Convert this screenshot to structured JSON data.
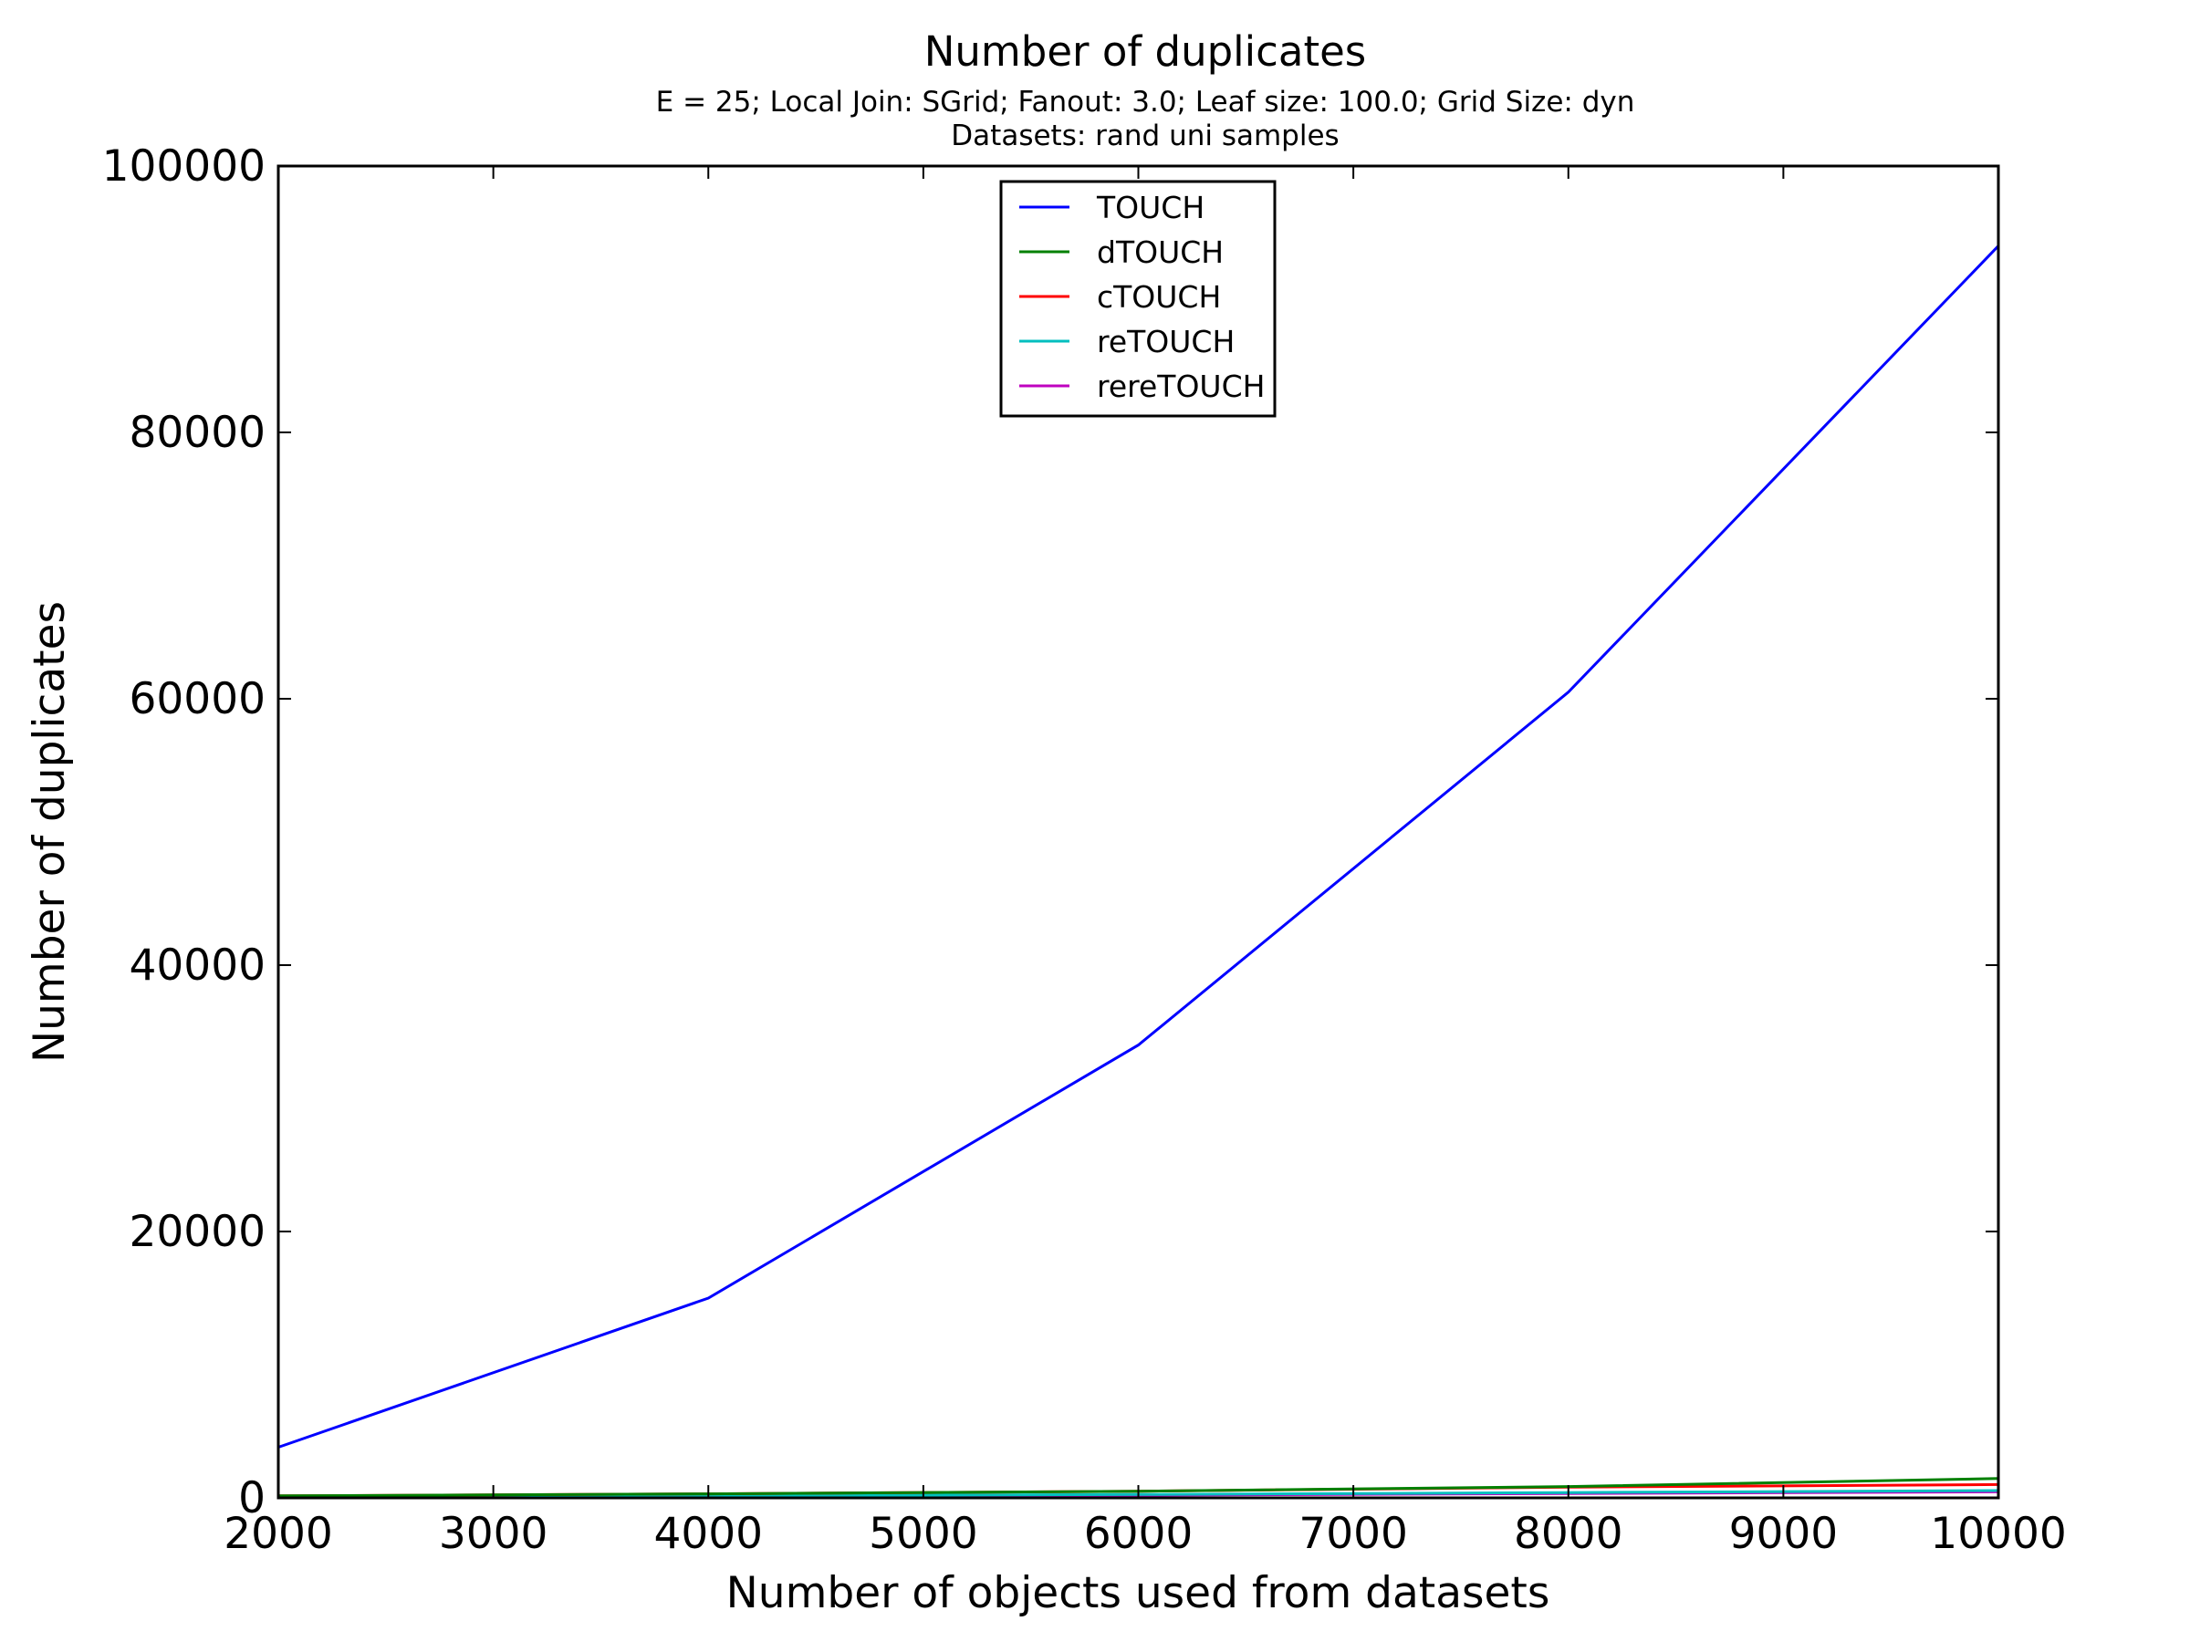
{
  "chart_data": {
    "type": "line",
    "title": "Number of duplicates",
    "subtitle_lines": [
      "E = 25; Local Join: SGrid; Fanout: 3.0; Leaf size: 100.0; Grid Size: dyn",
      "Datasets: rand uni samples"
    ],
    "xlabel": "Number of objects used from datasets",
    "ylabel": "Number of duplicates",
    "xlim": [
      2000,
      10000
    ],
    "ylim": [
      0,
      100000
    ],
    "xticks": [
      2000,
      3000,
      4000,
      5000,
      6000,
      7000,
      8000,
      9000,
      10000
    ],
    "yticks": [
      0,
      20000,
      40000,
      60000,
      80000,
      100000
    ],
    "grid": false,
    "legend_position": "top-center",
    "x": [
      2000,
      4000,
      6000,
      8000,
      10000
    ],
    "series": [
      {
        "name": "TOUCH",
        "color": "#0000ff",
        "values": [
          3800,
          15000,
          34000,
          60500,
          94000
        ]
      },
      {
        "name": "dTOUCH",
        "color": "#008000",
        "values": [
          150,
          300,
          500,
          850,
          1450
        ]
      },
      {
        "name": "cTOUCH",
        "color": "#ff0000",
        "values": [
          150,
          300,
          500,
          800,
          1000
        ]
      },
      {
        "name": "reTOUCH",
        "color": "#00bfbf",
        "values": [
          80,
          150,
          250,
          400,
          550
        ]
      },
      {
        "name": "rereTOUCH",
        "color": "#bf00bf",
        "values": [
          60,
          120,
          200,
          320,
          450
        ]
      }
    ]
  }
}
